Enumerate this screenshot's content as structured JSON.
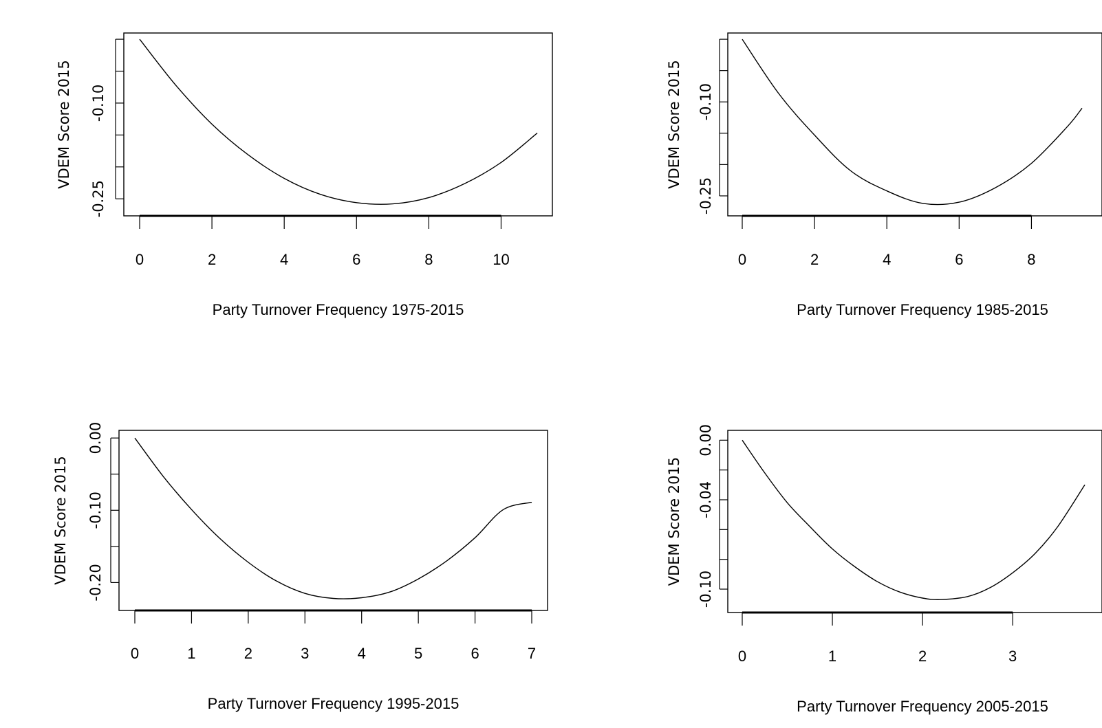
{
  "chart_data": [
    {
      "type": "line",
      "xlabel": "Party Turnover Frequency 1975-2015",
      "ylabel": "VDEM Score 2015",
      "xlim": [
        0,
        11
      ],
      "ylim": [
        -0.267,
        -0.001
      ],
      "xticks": [
        "0",
        "2",
        "4",
        "6",
        "8",
        "10"
      ],
      "xtick_values": [
        0,
        2,
        4,
        6,
        8,
        10
      ],
      "ytick_values": [
        -0.25,
        -0.2,
        -0.15,
        -0.1,
        -0.05,
        0.0
      ],
      "ytick_labels": [
        "-0.25",
        "",
        "",
        "-0.10",
        "",
        ""
      ],
      "series": [
        {
          "x": [
            0,
            1,
            2,
            3,
            4,
            5,
            6,
            7,
            8,
            9,
            10,
            11
          ],
          "y": [
            0.0,
            -0.072,
            -0.133,
            -0.181,
            -0.218,
            -0.243,
            -0.256,
            -0.258,
            -0.248,
            -0.226,
            -0.193,
            -0.147
          ]
        }
      ]
    },
    {
      "type": "line",
      "xlabel": "Party Turnover Frequency 1985-2015",
      "ylabel": "VDEM Score 2015",
      "xlim": [
        0,
        9.4
      ],
      "ylim": [
        -0.272,
        -0.001
      ],
      "xticks": [
        "0",
        "2",
        "4",
        "6",
        "8"
      ],
      "xtick_values": [
        0,
        2,
        4,
        6,
        8
      ],
      "ytick_values": [
        -0.25,
        -0.2,
        -0.15,
        -0.1,
        -0.05,
        0.0
      ],
      "ytick_labels": [
        "-0.25",
        "",
        "",
        "-0.10",
        "",
        ""
      ],
      "series": [
        {
          "x": [
            0,
            1,
            2,
            3,
            4,
            5,
            6,
            7,
            8,
            9,
            9.4
          ],
          "y": [
            0.0,
            -0.086,
            -0.153,
            -0.21,
            -0.242,
            -0.262,
            -0.26,
            -0.237,
            -0.198,
            -0.139,
            -0.11
          ]
        }
      ]
    },
    {
      "type": "line",
      "xlabel": "Party Turnover Frequency 1995-2015",
      "ylabel": "VDEM Score 2015",
      "xlim": [
        0,
        7
      ],
      "ylim": [
        -0.231,
        0.003
      ],
      "xticks": [
        "0",
        "1",
        "2",
        "3",
        "4",
        "5",
        "6",
        "7"
      ],
      "xtick_values": [
        0,
        1,
        2,
        3,
        4,
        5,
        6,
        7
      ],
      "ytick_values": [
        -0.2,
        -0.15,
        -0.1,
        -0.05,
        0.0
      ],
      "ytick_labels": [
        "-0.20",
        "",
        "-0.10",
        "",
        "0.00"
      ],
      "series": [
        {
          "x": [
            0,
            0.5,
            1,
            1.5,
            2,
            2.5,
            3,
            3.5,
            4,
            4.5,
            5,
            5.5,
            6,
            6.5,
            7
          ],
          "y": [
            0.0,
            -0.053,
            -0.099,
            -0.139,
            -0.172,
            -0.198,
            -0.215,
            -0.222,
            -0.221,
            -0.213,
            -0.195,
            -0.17,
            -0.138,
            -0.099,
            -0.089
          ]
        }
      ]
    },
    {
      "type": "line",
      "xlabel": "Party Turnover Frequency 2005-2015",
      "ylabel": "VDEM Score 2015",
      "xlim": [
        0,
        3.8
      ],
      "ylim": [
        -0.112,
        0.002
      ],
      "xticks": [
        "0",
        "1",
        "2",
        "3"
      ],
      "xtick_values": [
        0,
        1,
        2,
        3
      ],
      "ytick_values": [
        -0.1,
        -0.08,
        -0.06,
        -0.04,
        -0.02,
        0.0
      ],
      "ytick_labels": [
        "-0.10",
        "",
        "",
        "-0.04",
        "",
        "0.00"
      ],
      "series": [
        {
          "x": [
            0,
            0.25,
            0.5,
            0.75,
            1,
            1.25,
            1.5,
            1.75,
            2,
            2.2,
            2.5,
            2.75,
            3,
            3.25,
            3.5,
            3.8
          ],
          "y": [
            0.0,
            -0.022,
            -0.042,
            -0.058,
            -0.073,
            -0.085,
            -0.095,
            -0.102,
            -0.106,
            -0.107,
            -0.105,
            -0.099,
            -0.089,
            -0.076,
            -0.058,
            -0.03
          ]
        }
      ]
    }
  ]
}
